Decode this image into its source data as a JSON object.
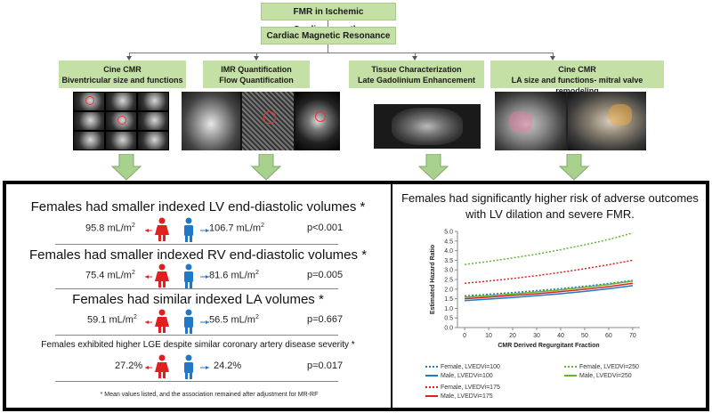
{
  "flow": {
    "title": "FMR in Ischemic Cardiomyopathy",
    "cmr": "Cardiac Magnetic Resonance",
    "categories": [
      {
        "line1": "Cine CMR",
        "line2": "Biventricular size and functions"
      },
      {
        "line1": "IMR Quantification",
        "line2": "Flow Quantification"
      },
      {
        "line1": "Tissue Characterization",
        "line2": "Late Gadolinium Enhancement"
      },
      {
        "line1": "Cine CMR",
        "line2": "LA size and functions- mitral valve remodeling"
      }
    ]
  },
  "findings": [
    {
      "heading": "Females had smaller indexed LV end-diastolic volumes *",
      "female": "95.8 mL/m",
      "male": "106.7 mL/m",
      "p": "p<0.001"
    },
    {
      "heading": "Females had smaller indexed RV end-diastolic volumes *",
      "female": "75.4 mL/m",
      "male": "81.6 mL/m",
      "p": "p=0.005"
    },
    {
      "heading": "Females had similar indexed LA volumes *",
      "female": "59.1 mL/m",
      "male": "56.5 mL/m",
      "p": "p=0.667"
    },
    {
      "heading": "Females exhibited higher LGE despite similar coronary artery disease severity *",
      "female": "27.2%",
      "male": "24.2%",
      "p": "p=0.017"
    }
  ],
  "units_sup": "2",
  "footnote": "* Mean values listed, and the association remained after adjustment for MR-RF",
  "right_title": "Females had significantly higher risk of adverse outcomes with LV dilation and severe FMR.",
  "colors": {
    "female": "#e02020",
    "male": "#1f78c8",
    "green_box": "#c5e0a5",
    "arrow_green": "#a9d18e"
  },
  "chart_data": {
    "type": "line",
    "xlabel": "CMR Derived Regurgitant Fraction",
    "ylabel": "Estimated Hazard Ratio",
    "x": [
      0,
      10,
      20,
      30,
      40,
      50,
      60,
      70
    ],
    "xlim": [
      -3,
      73
    ],
    "ylim": [
      0.0,
      5.0
    ],
    "yticks": [
      "0.0",
      "0.5",
      "1.0",
      "1.5",
      "2.0",
      "2.5",
      "3.0",
      "3.5",
      "4.0",
      "4.5",
      "5.0"
    ],
    "series": [
      {
        "name": "Female, LVEDVi=100",
        "color": "#1f78c8",
        "dash": "dotted",
        "values": [
          1.65,
          1.73,
          1.82,
          1.92,
          2.03,
          2.15,
          2.29,
          2.45
        ]
      },
      {
        "name": "Male, LVEDVi=100",
        "color": "#1f78c8",
        "dash": "solid",
        "values": [
          1.4,
          1.48,
          1.56,
          1.66,
          1.76,
          1.88,
          2.02,
          2.18
        ]
      },
      {
        "name": "Female, LVEDVi=175",
        "color": "#e02020",
        "dash": "dotted",
        "values": [
          2.3,
          2.42,
          2.55,
          2.7,
          2.87,
          3.06,
          3.27,
          3.5
        ]
      },
      {
        "name": "Male, LVEDVi=175",
        "color": "#e02020",
        "dash": "solid",
        "values": [
          1.5,
          1.58,
          1.67,
          1.76,
          1.87,
          1.99,
          2.13,
          2.3
        ]
      },
      {
        "name": "Female, LVEDVi=250",
        "color": "#62b52f",
        "dash": "dotted",
        "values": [
          3.28,
          3.44,
          3.62,
          3.82,
          4.05,
          4.3,
          4.58,
          4.92
        ]
      },
      {
        "name": "Male, LVEDVi=250",
        "color": "#62b52f",
        "dash": "solid",
        "values": [
          1.58,
          1.66,
          1.75,
          1.85,
          1.96,
          2.09,
          2.24,
          2.42
        ]
      }
    ]
  }
}
